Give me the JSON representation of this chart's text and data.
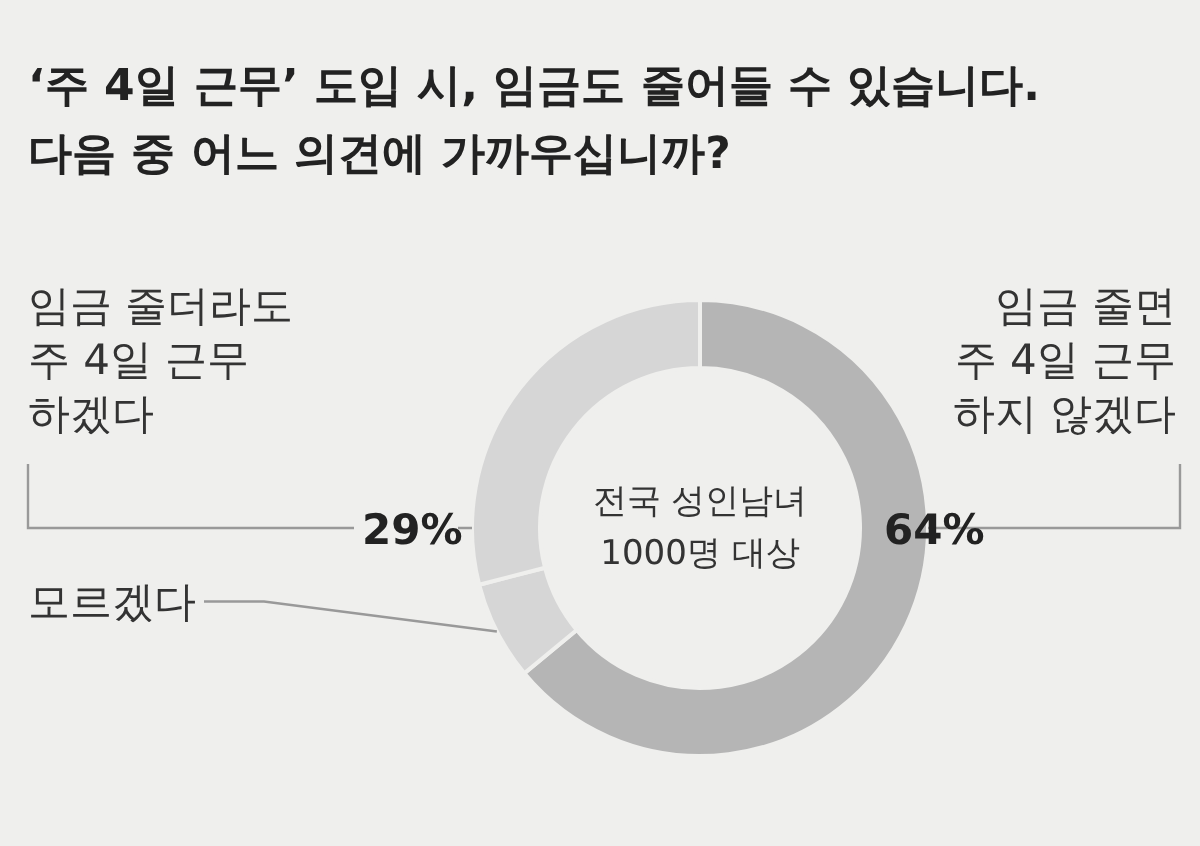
{
  "chart_data": {
    "type": "donut",
    "title": "‘주 4일 근무’ 도입 시, 임금도 줄어들 수 있습니다. 다음 중 어느 의견에 가까우십니까?",
    "categories": [
      "임금 줄면\n주 4일 근무\n하지 않겠다",
      "모르겠다",
      "임금 줄더라도\n주 4일 근무\n하겠다"
    ],
    "values": [
      64,
      7,
      29
    ],
    "colors": [
      "#b5b5b5",
      "#d6d6d6",
      "#d6d6d6"
    ],
    "value_labels": [
      "64%",
      null,
      "29%"
    ],
    "annotations": [
      "전국 성인남녀\n1000명 대상"
    ]
  }
}
